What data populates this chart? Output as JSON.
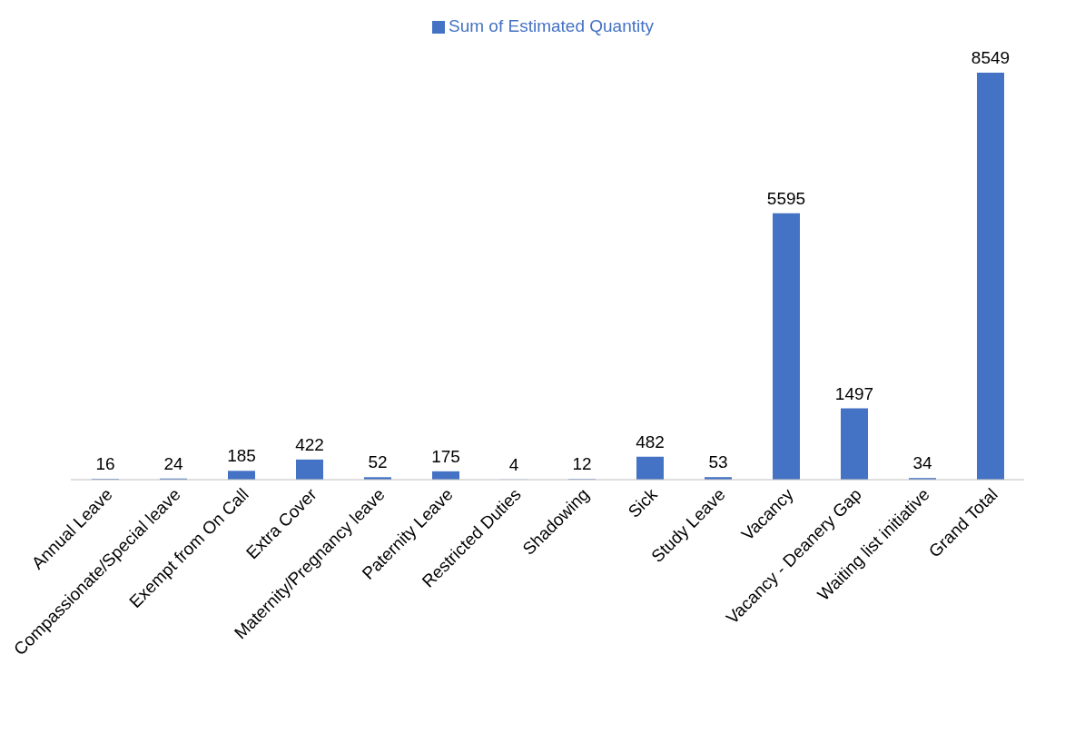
{
  "chart_data": {
    "type": "bar",
    "categories": [
      "Annual Leave",
      "Compassionate/Special leave",
      "Exempt from On Call",
      "Extra Cover",
      "Maternity/Pregnancy leave",
      "Paternity Leave",
      "Restricted Duties",
      "Shadowing",
      "Sick",
      "Study Leave",
      "Vacancy",
      "Vacancy - Deanery Gap",
      "Waiting list initiative",
      "Grand Total"
    ],
    "series": [
      {
        "name": "Sum of Estimated Quantity",
        "color": "#4472c4",
        "values": [
          16,
          24,
          185,
          422,
          52,
          175,
          4,
          12,
          482,
          53,
          5595,
          1497,
          34,
          8549
        ]
      }
    ],
    "data_labels": true,
    "legend": "top"
  }
}
